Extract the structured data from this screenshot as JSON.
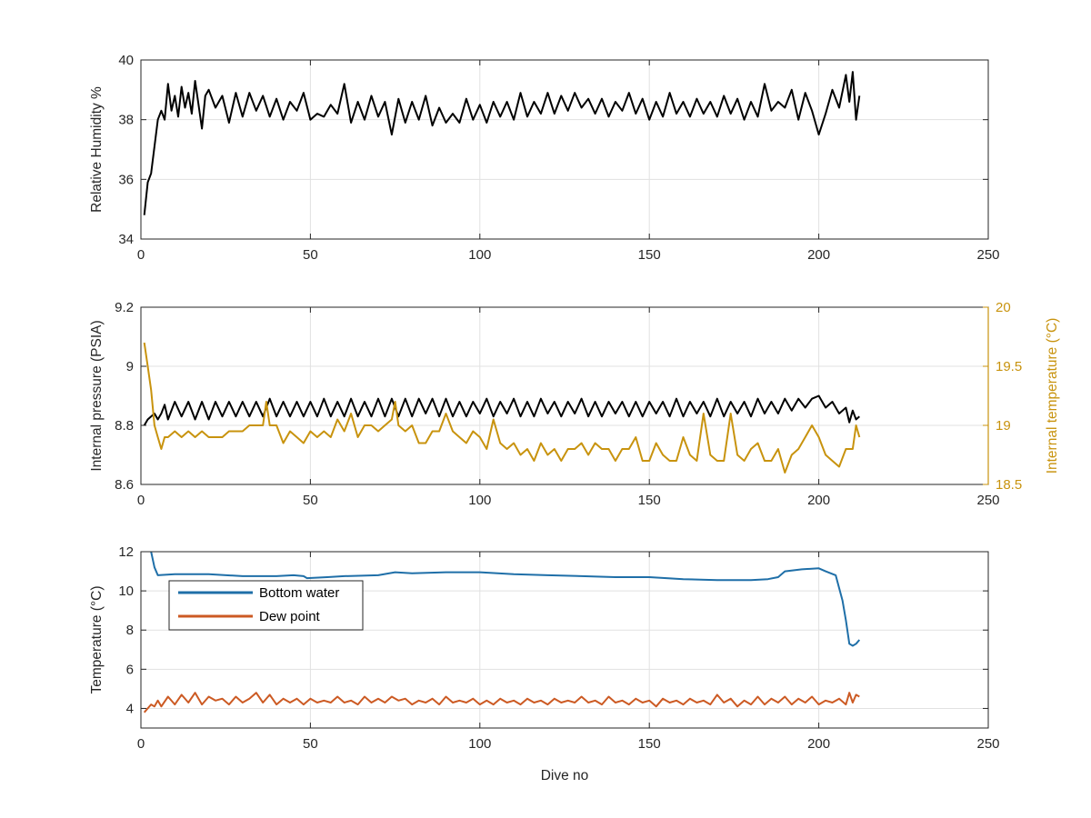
{
  "chart_data": [
    {
      "type": "line",
      "ylabel": "Relative Humidity %",
      "xlim": [
        0,
        250
      ],
      "ylim": [
        34,
        40
      ],
      "xticks": [
        "0",
        "50",
        "100",
        "150",
        "200",
        "250"
      ],
      "yticks": [
        "34",
        "36",
        "38",
        "40"
      ],
      "grid": true,
      "series": [
        {
          "color": "#000000",
          "x": [
            1,
            2,
            3,
            4,
            5,
            6,
            7,
            8,
            9,
            10,
            11,
            12,
            13,
            14,
            15,
            16,
            17,
            18,
            19,
            20,
            22,
            24,
            26,
            28,
            30,
            32,
            34,
            36,
            38,
            40,
            42,
            44,
            46,
            48,
            50,
            52,
            54,
            56,
            58,
            60,
            62,
            64,
            66,
            68,
            70,
            72,
            74,
            76,
            78,
            80,
            82,
            84,
            86,
            88,
            90,
            92,
            94,
            96,
            98,
            100,
            102,
            104,
            106,
            108,
            110,
            112,
            114,
            116,
            118,
            120,
            122,
            124,
            126,
            128,
            130,
            132,
            134,
            136,
            138,
            140,
            142,
            144,
            146,
            148,
            150,
            152,
            154,
            156,
            158,
            160,
            162,
            164,
            166,
            168,
            170,
            172,
            174,
            176,
            178,
            180,
            182,
            184,
            186,
            188,
            190,
            192,
            194,
            196,
            198,
            200,
            202,
            204,
            206,
            208,
            209,
            210,
            211,
            212
          ],
          "y": [
            34.8,
            35.9,
            36.2,
            37.1,
            38.0,
            38.3,
            38.0,
            39.2,
            38.3,
            38.8,
            38.1,
            39.1,
            38.4,
            38.9,
            38.2,
            39.3,
            38.5,
            37.7,
            38.8,
            39.0,
            38.4,
            38.8,
            37.9,
            38.9,
            38.1,
            38.9,
            38.3,
            38.8,
            38.1,
            38.7,
            38.0,
            38.6,
            38.3,
            38.9,
            38.0,
            38.2,
            38.1,
            38.5,
            38.2,
            39.2,
            37.9,
            38.6,
            38.0,
            38.8,
            38.1,
            38.6,
            37.5,
            38.7,
            37.9,
            38.6,
            38.0,
            38.8,
            37.8,
            38.4,
            37.9,
            38.2,
            37.9,
            38.7,
            38.0,
            38.5,
            37.9,
            38.6,
            38.1,
            38.6,
            38.0,
            38.9,
            38.1,
            38.6,
            38.2,
            38.9,
            38.2,
            38.8,
            38.3,
            38.9,
            38.4,
            38.7,
            38.2,
            38.7,
            38.1,
            38.6,
            38.3,
            38.9,
            38.2,
            38.7,
            38.0,
            38.6,
            38.1,
            38.9,
            38.2,
            38.6,
            38.1,
            38.7,
            38.2,
            38.6,
            38.1,
            38.8,
            38.2,
            38.7,
            38.0,
            38.6,
            38.1,
            39.2,
            38.3,
            38.6,
            38.4,
            39.0,
            38.0,
            38.9,
            38.3,
            37.5,
            38.2,
            39.0,
            38.4,
            39.5,
            38.6,
            39.6,
            38.0,
            38.8
          ]
        }
      ]
    },
    {
      "type": "line",
      "ylabel": "Internal pressure (PSIA)",
      "ylabel_right": "Internal temperature (°C)",
      "xlim": [
        0,
        250
      ],
      "ylim": [
        8.6,
        9.2
      ],
      "ylim_right": [
        18.5,
        20
      ],
      "xticks": [
        "0",
        "50",
        "100",
        "150",
        "200",
        "250"
      ],
      "yticks": [
        "8.6",
        "8.8",
        "9",
        "9.2"
      ],
      "yticks_right": [
        "18.5",
        "19",
        "19.5",
        "20"
      ],
      "grid": true,
      "series": [
        {
          "axis": "left",
          "color": "#000000",
          "x": [
            1,
            2,
            4,
            5,
            6,
            7,
            8,
            10,
            12,
            14,
            16,
            18,
            20,
            22,
            24,
            26,
            28,
            30,
            32,
            34,
            36,
            38,
            40,
            42,
            44,
            46,
            48,
            50,
            52,
            54,
            56,
            58,
            60,
            62,
            64,
            66,
            68,
            70,
            72,
            74,
            76,
            78,
            80,
            82,
            84,
            86,
            88,
            90,
            92,
            94,
            96,
            98,
            100,
            102,
            104,
            106,
            108,
            110,
            112,
            114,
            116,
            118,
            120,
            122,
            124,
            126,
            128,
            130,
            132,
            134,
            136,
            138,
            140,
            142,
            144,
            146,
            148,
            150,
            152,
            154,
            156,
            158,
            160,
            162,
            164,
            166,
            168,
            170,
            172,
            174,
            176,
            178,
            180,
            182,
            184,
            186,
            188,
            190,
            192,
            194,
            196,
            198,
            200,
            202,
            204,
            206,
            208,
            209,
            210,
            211,
            212
          ],
          "y": [
            8.8,
            8.82,
            8.84,
            8.82,
            8.84,
            8.87,
            8.82,
            8.88,
            8.83,
            8.88,
            8.82,
            8.88,
            8.82,
            8.88,
            8.83,
            8.88,
            8.83,
            8.88,
            8.83,
            8.88,
            8.83,
            8.89,
            8.83,
            8.88,
            8.83,
            8.88,
            8.83,
            8.88,
            8.83,
            8.89,
            8.83,
            8.88,
            8.83,
            8.89,
            8.83,
            8.88,
            8.83,
            8.89,
            8.83,
            8.89,
            8.83,
            8.89,
            8.83,
            8.89,
            8.84,
            8.89,
            8.83,
            8.89,
            8.83,
            8.88,
            8.83,
            8.88,
            8.84,
            8.89,
            8.83,
            8.88,
            8.84,
            8.89,
            8.83,
            8.88,
            8.83,
            8.89,
            8.84,
            8.88,
            8.83,
            8.88,
            8.84,
            8.89,
            8.83,
            8.88,
            8.83,
            8.88,
            8.84,
            8.88,
            8.83,
            8.88,
            8.83,
            8.88,
            8.84,
            8.88,
            8.83,
            8.89,
            8.83,
            8.88,
            8.84,
            8.88,
            8.83,
            8.89,
            8.83,
            8.88,
            8.84,
            8.88,
            8.83,
            8.89,
            8.84,
            8.88,
            8.84,
            8.89,
            8.85,
            8.89,
            8.86,
            8.89,
            8.9,
            8.86,
            8.88,
            8.84,
            8.86,
            8.81,
            8.85,
            8.82,
            8.83
          ]
        },
        {
          "axis": "right",
          "color": "#c8930e",
          "x": [
            1,
            2,
            3,
            4,
            5,
            6,
            7,
            8,
            10,
            12,
            14,
            16,
            18,
            20,
            22,
            24,
            26,
            28,
            30,
            32,
            34,
            36,
            37,
            38,
            40,
            42,
            44,
            46,
            48,
            50,
            52,
            54,
            56,
            58,
            60,
            62,
            64,
            66,
            68,
            70,
            72,
            74,
            75,
            76,
            78,
            80,
            82,
            84,
            86,
            88,
            90,
            92,
            94,
            96,
            98,
            100,
            102,
            104,
            106,
            108,
            110,
            112,
            114,
            116,
            118,
            120,
            122,
            124,
            126,
            128,
            130,
            132,
            134,
            136,
            138,
            140,
            142,
            144,
            146,
            148,
            150,
            152,
            154,
            156,
            158,
            160,
            162,
            164,
            166,
            168,
            170,
            172,
            174,
            176,
            178,
            180,
            182,
            184,
            186,
            188,
            190,
            192,
            194,
            196,
            198,
            200,
            202,
            204,
            206,
            208,
            210,
            211,
            212
          ],
          "y": [
            19.7,
            19.5,
            19.3,
            19.0,
            18.9,
            18.8,
            18.9,
            18.9,
            18.95,
            18.9,
            18.95,
            18.9,
            18.95,
            18.9,
            18.9,
            18.9,
            18.95,
            18.95,
            18.95,
            19.0,
            19.0,
            19.0,
            19.2,
            19.0,
            19.0,
            18.85,
            18.95,
            18.9,
            18.85,
            18.95,
            18.9,
            18.95,
            18.9,
            19.05,
            18.95,
            19.1,
            18.9,
            19.0,
            19.0,
            18.95,
            19.0,
            19.05,
            19.2,
            19.0,
            18.95,
            19.0,
            18.85,
            18.85,
            18.95,
            18.95,
            19.1,
            18.95,
            18.9,
            18.85,
            18.95,
            18.9,
            18.8,
            19.05,
            18.85,
            18.8,
            18.85,
            18.75,
            18.8,
            18.7,
            18.85,
            18.75,
            18.8,
            18.7,
            18.8,
            18.8,
            18.85,
            18.75,
            18.85,
            18.8,
            18.8,
            18.7,
            18.8,
            18.8,
            18.9,
            18.7,
            18.7,
            18.85,
            18.75,
            18.7,
            18.7,
            18.9,
            18.75,
            18.7,
            19.1,
            18.75,
            18.7,
            18.7,
            19.1,
            18.75,
            18.7,
            18.8,
            18.85,
            18.7,
            18.7,
            18.8,
            18.6,
            18.75,
            18.8,
            18.9,
            19.0,
            18.9,
            18.75,
            18.7,
            18.65,
            18.8,
            18.8,
            19.0,
            18.9
          ]
        }
      ]
    },
    {
      "type": "line",
      "xlabel": "Dive no",
      "ylabel": "Temperature (°C)",
      "xlim": [
        0,
        250
      ],
      "ylim": [
        3,
        12
      ],
      "xticks": [
        "0",
        "50",
        "100",
        "150",
        "200",
        "250"
      ],
      "yticks": [
        "4",
        "6",
        "8",
        "10",
        "12"
      ],
      "grid": true,
      "legend": "top-left",
      "series": [
        {
          "name": "Bottom water",
          "color": "#1f6fa8",
          "x": [
            3,
            4,
            5,
            10,
            20,
            30,
            40,
            45,
            48,
            49,
            55,
            60,
            70,
            75,
            80,
            90,
            100,
            110,
            120,
            130,
            140,
            150,
            160,
            170,
            180,
            185,
            188,
            190,
            195,
            200,
            202,
            205,
            207,
            208,
            209,
            210,
            211,
            212
          ],
          "y": [
            12.0,
            11.2,
            10.8,
            10.85,
            10.85,
            10.75,
            10.75,
            10.8,
            10.75,
            10.65,
            10.7,
            10.75,
            10.8,
            10.95,
            10.9,
            10.95,
            10.95,
            10.85,
            10.8,
            10.75,
            10.7,
            10.7,
            10.6,
            10.55,
            10.55,
            10.6,
            10.7,
            11.0,
            11.1,
            11.15,
            11.0,
            10.8,
            9.5,
            8.5,
            7.3,
            7.2,
            7.3,
            7.5
          ]
        },
        {
          "name": "Dew point",
          "color": "#cc5a23",
          "x": [
            1,
            2,
            3,
            4,
            5,
            6,
            8,
            10,
            12,
            14,
            16,
            18,
            20,
            22,
            24,
            26,
            28,
            30,
            32,
            34,
            36,
            38,
            40,
            42,
            44,
            46,
            48,
            50,
            52,
            54,
            56,
            58,
            60,
            62,
            64,
            66,
            68,
            70,
            72,
            74,
            76,
            78,
            80,
            82,
            84,
            86,
            88,
            90,
            92,
            94,
            96,
            98,
            100,
            102,
            104,
            106,
            108,
            110,
            112,
            114,
            116,
            118,
            120,
            122,
            124,
            126,
            128,
            130,
            132,
            134,
            136,
            138,
            140,
            142,
            144,
            146,
            148,
            150,
            152,
            154,
            156,
            158,
            160,
            162,
            164,
            166,
            168,
            170,
            172,
            174,
            176,
            178,
            180,
            182,
            184,
            186,
            188,
            190,
            192,
            194,
            196,
            198,
            200,
            202,
            204,
            206,
            208,
            209,
            210,
            211,
            212
          ],
          "y": [
            3.8,
            4.0,
            4.2,
            4.1,
            4.4,
            4.1,
            4.6,
            4.2,
            4.7,
            4.3,
            4.8,
            4.2,
            4.6,
            4.4,
            4.5,
            4.2,
            4.6,
            4.3,
            4.5,
            4.8,
            4.3,
            4.7,
            4.2,
            4.5,
            4.3,
            4.5,
            4.2,
            4.5,
            4.3,
            4.4,
            4.3,
            4.6,
            4.3,
            4.4,
            4.2,
            4.6,
            4.3,
            4.5,
            4.3,
            4.6,
            4.4,
            4.5,
            4.2,
            4.4,
            4.3,
            4.5,
            4.2,
            4.6,
            4.3,
            4.4,
            4.3,
            4.5,
            4.2,
            4.4,
            4.2,
            4.5,
            4.3,
            4.4,
            4.2,
            4.5,
            4.3,
            4.4,
            4.2,
            4.5,
            4.3,
            4.4,
            4.3,
            4.6,
            4.3,
            4.4,
            4.2,
            4.6,
            4.3,
            4.4,
            4.2,
            4.5,
            4.3,
            4.4,
            4.1,
            4.5,
            4.3,
            4.4,
            4.2,
            4.5,
            4.3,
            4.4,
            4.2,
            4.7,
            4.3,
            4.5,
            4.1,
            4.4,
            4.2,
            4.6,
            4.2,
            4.5,
            4.3,
            4.6,
            4.2,
            4.5,
            4.3,
            4.6,
            4.2,
            4.4,
            4.3,
            4.5,
            4.2,
            4.8,
            4.3,
            4.7,
            4.6
          ]
        }
      ]
    }
  ]
}
